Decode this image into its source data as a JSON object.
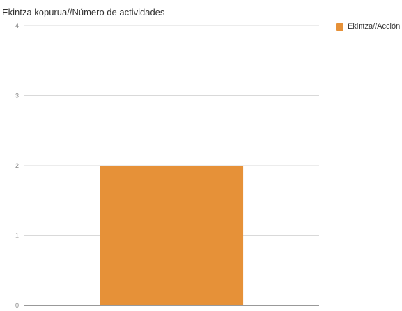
{
  "chart_data": {
    "type": "bar",
    "title": "Ekintza kopurua//Número de actividades",
    "categories": [
      ""
    ],
    "series": [
      {
        "name": "Ekintza//Acción",
        "values": [
          2
        ],
        "color": "#e69138"
      }
    ],
    "ylim": [
      0,
      4
    ],
    "yticks": [
      "0",
      "1",
      "2",
      "3",
      "4"
    ],
    "grid": true,
    "legend_position": "top-right"
  }
}
